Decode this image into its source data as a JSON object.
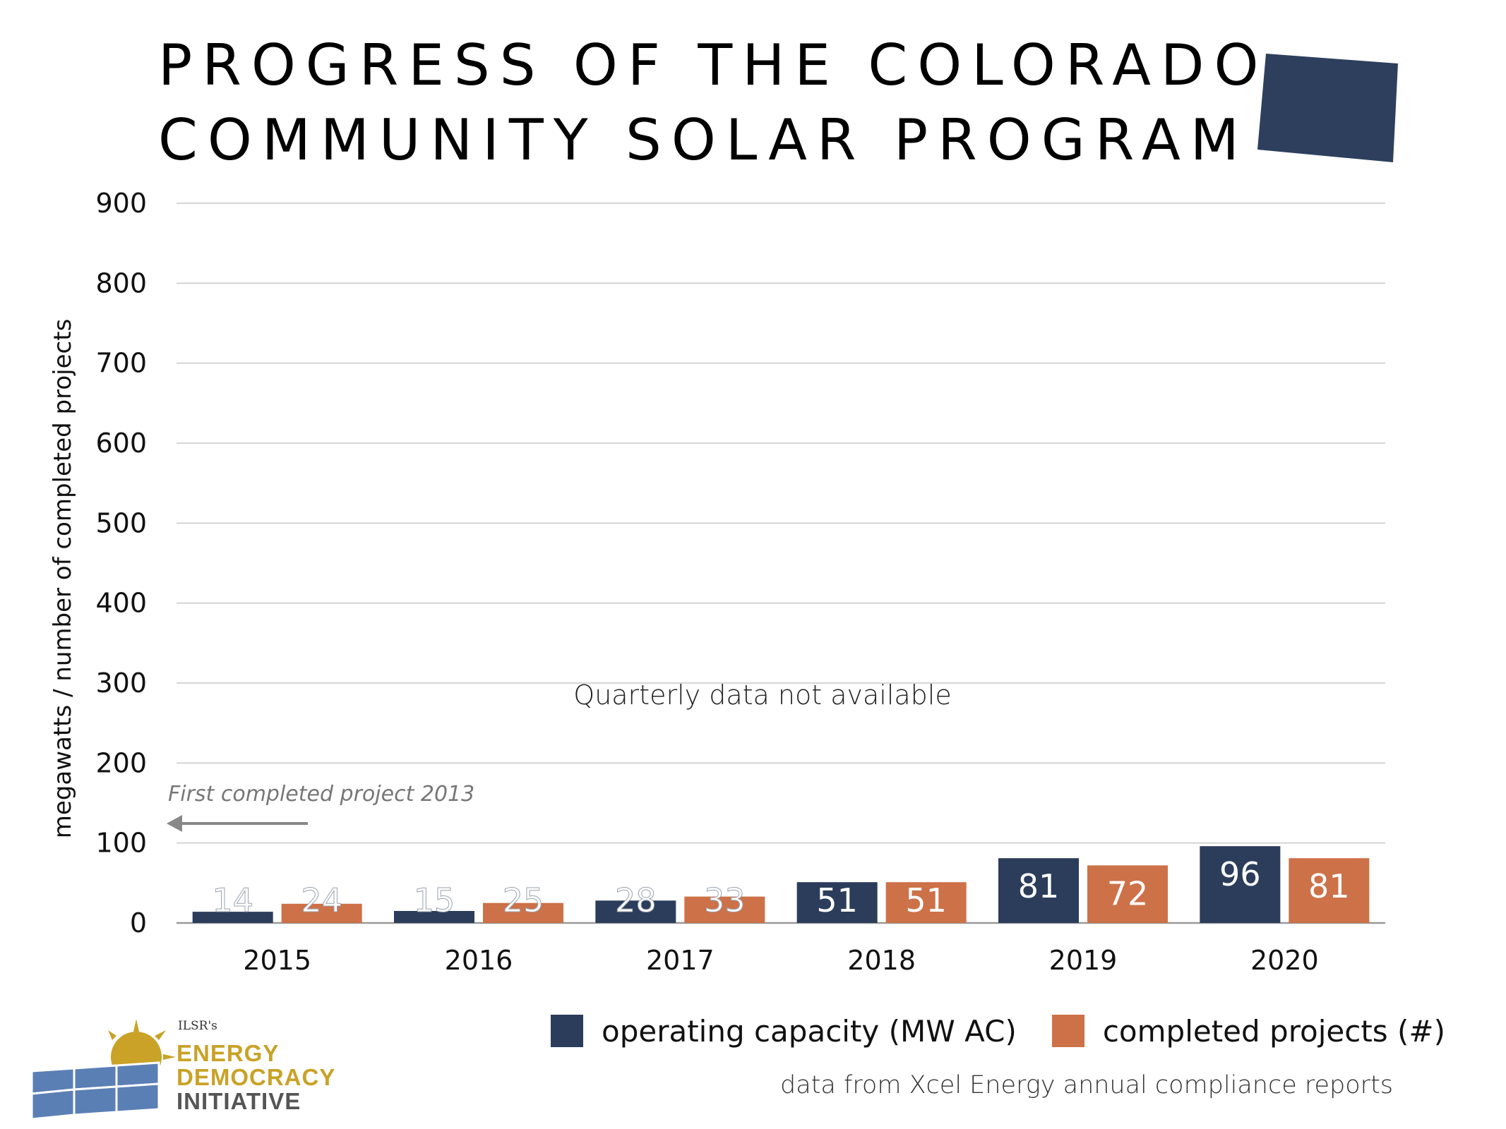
{
  "title": {
    "line1": "PROGRESS OF THE COLORADO",
    "line2": "COMMUNITY SOLAR PROGRAM"
  },
  "colors": {
    "capacity": "#2b3d5b",
    "projects": "#cd7148",
    "state_shape": "#2e3f5e",
    "logo_gold": "#c9a227",
    "logo_blue": "#5a7fb5"
  },
  "chart_data": {
    "type": "bar",
    "categories": [
      "2015",
      "2016",
      "2017",
      "2018",
      "2019",
      "2020"
    ],
    "series": [
      {
        "name": "operating capacity (MW AC)",
        "values": [
          14,
          15,
          28,
          51,
          81,
          96
        ]
      },
      {
        "name": "completed projects (#)",
        "values": [
          24,
          25,
          33,
          51,
          72,
          81
        ]
      }
    ],
    "ylabel": "megawatts / number of completed projects",
    "ylim": [
      0,
      900
    ],
    "yticks": [
      0,
      100,
      200,
      300,
      400,
      500,
      600,
      700,
      800,
      900
    ],
    "grid": true,
    "annotations": {
      "quarterly": "Quarterly data not available",
      "first_project": "First completed project 2013"
    },
    "legend_position": "bottom-right"
  },
  "footer": {
    "source": "data from Xcel Energy annual compliance reports"
  },
  "logo": {
    "org": "ILSR's",
    "line1": "ENERGY",
    "line2": "DEMOCRACY",
    "line3": "INITIATIVE"
  }
}
